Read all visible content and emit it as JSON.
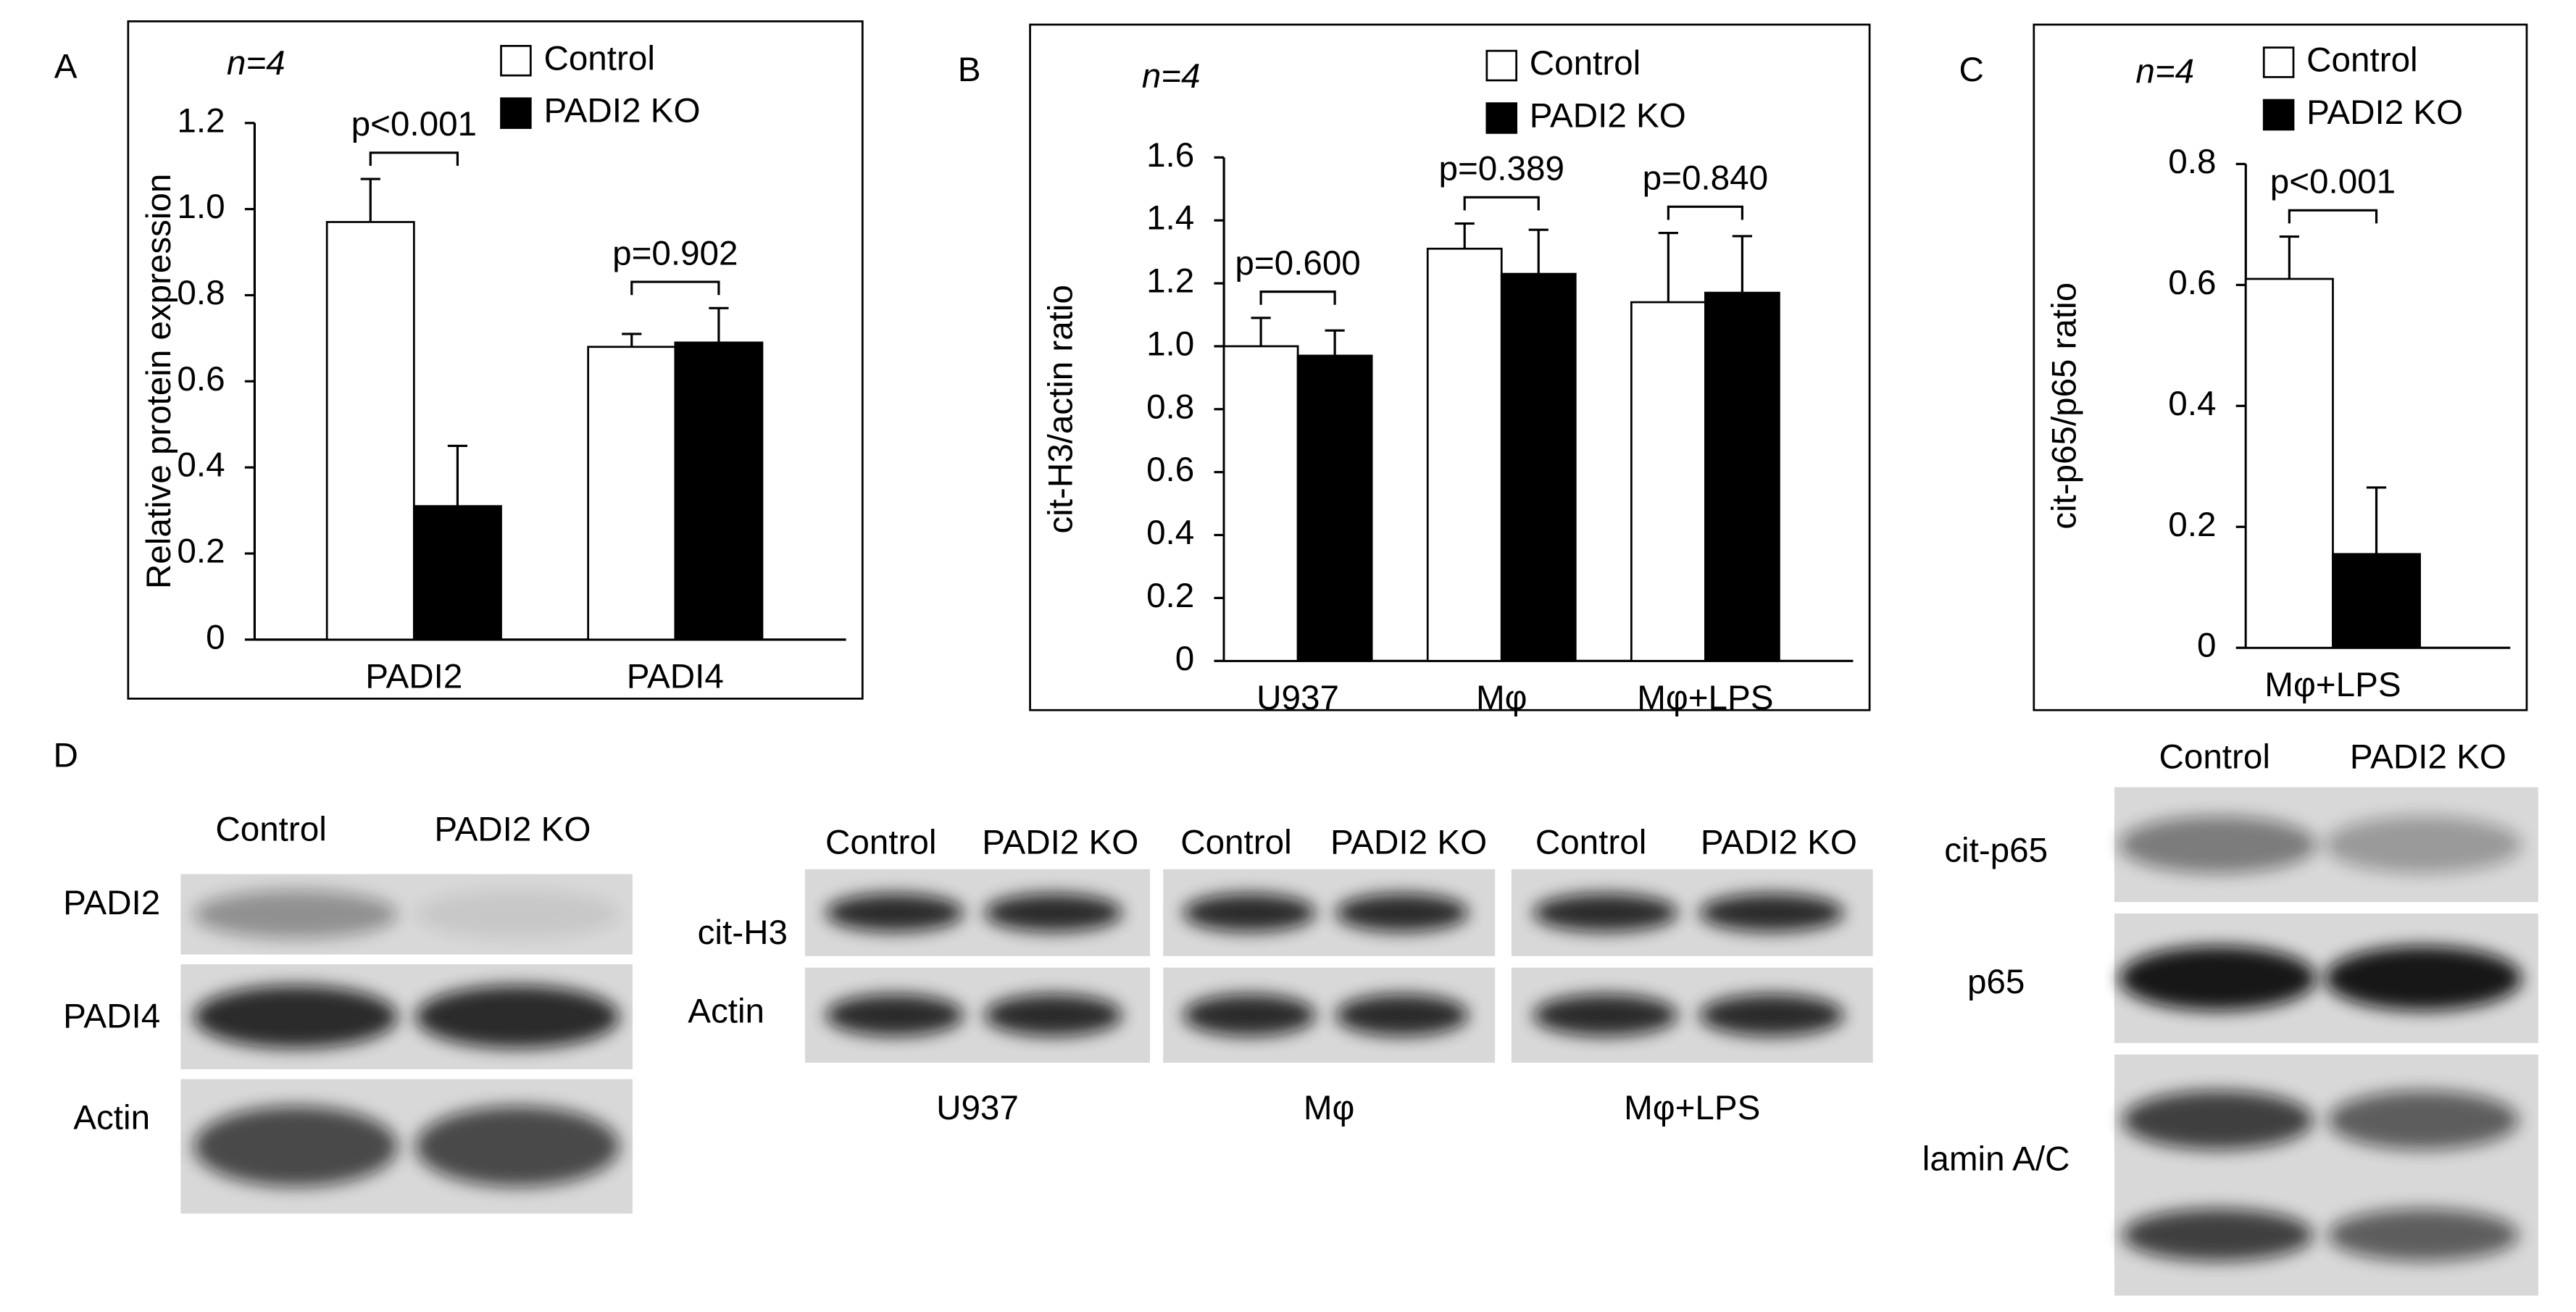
{
  "chart_data": [
    {
      "type": "bar",
      "panel": "A",
      "y_label": "Relative protein expression",
      "n_label": "n=4",
      "categories": [
        "PADI2",
        "PADI4"
      ],
      "p_values": [
        "p<0.001",
        "p=0.902"
      ],
      "series": [
        {
          "name": "Control",
          "color": "#ffffff",
          "values": [
            0.97,
            0.68
          ],
          "errors": [
            0.1,
            0.03
          ]
        },
        {
          "name": "PADI2 KO",
          "color": "#000000",
          "values": [
            0.31,
            0.69
          ],
          "errors": [
            0.14,
            0.08
          ]
        }
      ],
      "ylim": [
        0,
        1.2
      ],
      "yticks": [
        0,
        0.2,
        0.4,
        0.6,
        0.8,
        {
          "value": 1,
          "label": "1.0"
        },
        1.2
      ]
    },
    {
      "type": "bar",
      "panel": "B",
      "y_label": "cit-H3/actin ratio",
      "n_label": "n=4",
      "categories": [
        "U937",
        "Mφ",
        "Mφ+LPS"
      ],
      "p_values": [
        "p=0.600",
        "p=0.389",
        "p=0.840"
      ],
      "series": [
        {
          "name": "Control",
          "color": "#ffffff",
          "values": [
            1.0,
            1.31,
            1.14
          ],
          "errors": [
            0.09,
            0.08,
            0.22
          ]
        },
        {
          "name": "PADI2 KO",
          "color": "#000000",
          "values": [
            0.97,
            1.23,
            1.17
          ],
          "errors": [
            0.08,
            0.14,
            0.18
          ]
        }
      ],
      "ylim": [
        0,
        1.6
      ],
      "yticks": [
        0,
        0.2,
        0.4,
        0.6,
        0.8,
        {
          "value": 1,
          "label": "1.0"
        },
        1.2,
        1.4,
        1.6
      ]
    },
    {
      "type": "bar",
      "panel": "C",
      "y_label": "cit-p65/p65 ratio",
      "n_label": "n=4",
      "categories": [
        "Mφ+LPS"
      ],
      "p_values": [
        "p<0.001"
      ],
      "series": [
        {
          "name": "Control",
          "color": "#ffffff",
          "values": [
            0.61
          ],
          "errors": [
            0.07
          ]
        },
        {
          "name": "PADI2 KO",
          "color": "#000000",
          "values": [
            0.155
          ],
          "errors": [
            0.11
          ]
        }
      ],
      "ylim": [
        0,
        0.8
      ],
      "yticks": [
        0,
        0.2,
        0.4,
        0.6,
        0.8
      ]
    }
  ],
  "blots": {
    "panel": "D",
    "panels": [
      {
        "columns": [
          "Control",
          "PADI2 KO"
        ],
        "rows": [
          "PADI2",
          "PADI4",
          "Actin"
        ]
      },
      {
        "rows": [
          "cit-H3",
          "Actin"
        ],
        "groups": [
          {
            "name": "U937",
            "columns": [
              "Control",
              "PADI2 KO"
            ]
          },
          {
            "name": "Mφ",
            "columns": [
              "Control",
              "PADI2 KO"
            ]
          },
          {
            "name": "Mφ+LPS",
            "columns": [
              "Control",
              "PADI2 KO"
            ]
          }
        ]
      },
      {
        "columns": [
          "Control",
          "PADI2 KO"
        ],
        "rows": [
          "cit-p65",
          "p65",
          "lamin A/C"
        ]
      }
    ]
  }
}
